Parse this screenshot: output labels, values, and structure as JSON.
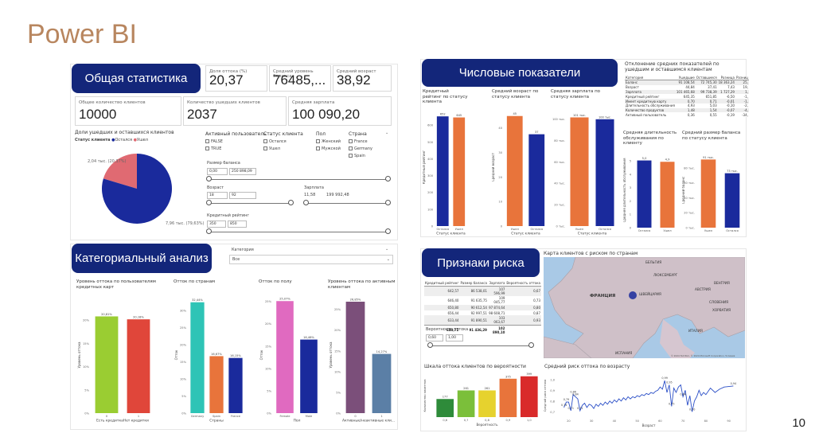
{
  "slide": {
    "title": "Power BI",
    "page": "10"
  },
  "general": {
    "banner": "Общая статистика",
    "cards": [
      {
        "label": "Доля оттока (%)",
        "value": "20,37"
      },
      {
        "label": "Средний уровень баланса",
        "value": "76485,..."
      },
      {
        "label": "Средний возраст",
        "value": "38,92"
      },
      {
        "label": "Общее количество клиентов",
        "value": "10000"
      },
      {
        "label": "Количество ушедших клиентов",
        "value": "2037"
      },
      {
        "label": "Средняя зарплата",
        "value": "100 090,20"
      }
    ],
    "pie": {
      "title": "Доли ушедших и оставшихся клиентов",
      "legend_title": "Статус клиента",
      "legend": [
        "Остался",
        "Ушел"
      ],
      "label_small": "2,04 тыс. (20,37%)",
      "label_big": "7,96 тыс. (79,63%)",
      "share_left": 0.2037,
      "colors": [
        "#1a2a9c",
        "#e06a72"
      ]
    },
    "filters": {
      "active": {
        "title": "Активный пользователь",
        "items": [
          "FALSE",
          "TRUE"
        ]
      },
      "status": {
        "title": "Статус клиента",
        "items": [
          "Остался",
          "Ушел"
        ]
      },
      "gender": {
        "title": "Пол",
        "items": [
          "Женский",
          "Мужской"
        ]
      },
      "country": {
        "title": "Страна",
        "items": [
          "France",
          "Germany",
          "Spain"
        ]
      },
      "balance": {
        "title": "Размер баланса",
        "min": "0,00",
        "max": "250 898,09"
      },
      "age": {
        "title": "Возраст",
        "min": "18",
        "max": "92"
      },
      "salary": {
        "title": "Зарплата",
        "min": "11,58",
        "max": "199 992,48"
      },
      "credit": {
        "title": "Кредитный рейтинг",
        "min": "350",
        "max": "850"
      }
    }
  },
  "numeric": {
    "banner": "Числовые показатели",
    "charts": [
      {
        "title": "Кредитный рейтинг по статусу клиента",
        "ylabel": "Кредитный рейтинг",
        "xlabel": "Статус клиента",
        "categories": [
          "Остался",
          "Ушел"
        ],
        "values": [
          651.85,
          645.35
        ],
        "labels": [
          "652",
          "645"
        ],
        "ymax": 700,
        "ticks": [
          "0",
          "100",
          "200",
          "300",
          "400",
          "500",
          "600"
        ]
      },
      {
        "title": "Средний возраст по статусу клиента",
        "ylabel": "Средний возраст",
        "xlabel": "Статус клиента",
        "categories": [
          "Ушел",
          "Остался"
        ],
        "values": [
          44.84,
          37.41
        ],
        "labels": [
          "45",
          "37"
        ],
        "ymax": 48,
        "ticks": [
          "0",
          "10",
          "20",
          "30",
          "40"
        ]
      },
      {
        "title": "Средняя зарплата по статусу клиента",
        "ylabel": "",
        "xlabel": "Статус клиента",
        "categories": [
          "Ушел",
          "Остался"
        ],
        "values": [
          101465.68,
          99738.39
        ],
        "labels": [
          "101 тыс.",
          "100 тыс."
        ],
        "ymax": 110000,
        "ticks": [
          "0 тыс.",
          "20 тыс.",
          "40 тыс.",
          "60 тыс.",
          "80 тыс.",
          "100 тыс."
        ]
      }
    ],
    "table": {
      "title": "Отклонение средних показателей по ушедшим и оставшимся клиентам",
      "headers": [
        "Категория",
        "Ушедшие",
        "Оставшиеся",
        "Разница",
        "Разниц"
      ],
      "rows": [
        [
          "Баланс",
          "91 108,54",
          "72 745,30",
          "18 363,24",
          "25,"
        ],
        [
          "Возраст",
          "44,84",
          "37,41",
          "7,43",
          "19,"
        ],
        [
          "Зарплата",
          "101 465,68",
          "99 738,39",
          "1 727,29",
          "1,"
        ],
        [
          "Кредитный рейтинг",
          "645,35",
          "651,85",
          "-6,50",
          "-1,"
        ],
        [
          "Имеет кредитную карту",
          "0,70",
          "0,71",
          "-0,01",
          "-1,"
        ],
        [
          "Длительность обслуживания",
          "4,93",
          "5,03",
          "-0,10",
          "-2,"
        ],
        [
          "Количество продуктов",
          "1,48",
          "1,54",
          "-0,07",
          "-4,"
        ],
        [
          "Активный пользователь",
          "0,36",
          "0,55",
          "-0,19",
          "-34,"
        ]
      ]
    },
    "small": [
      {
        "title": "Средняя длительность обслуживания по клиенту",
        "ylabel": "Средняя длительность обслуживания",
        "categories": [
          "Остался",
          "Ушел"
        ],
        "values": [
          5.03,
          4.93
        ],
        "labels": [
          "5,0",
          "4,9"
        ],
        "ymax": 5.6,
        "ticks": [
          "0",
          "1",
          "2",
          "3",
          "4",
          "5"
        ],
        "colors": [
          "#1a2a9c",
          "#e8743b"
        ]
      },
      {
        "title": "Средний размер баланса по статусу клиента",
        "ylabel": "Средний баланс",
        "categories": [
          "Ушел",
          "Остался"
        ],
        "values": [
          91108.54,
          72745.3
        ],
        "labels": [
          "91 тыс.",
          "73 тыс."
        ],
        "ymax": 100000,
        "ticks": [
          "0 тыс.",
          "20 тыс.",
          "40 тыс.",
          "60 тыс.",
          "80 тыс."
        ],
        "colors": [
          "#e8743b",
          "#1a2a9c"
        ]
      }
    ]
  },
  "categorical": {
    "banner": "Категориальный анализ",
    "dropdown": {
      "title": "Категория",
      "value": "Все"
    },
    "charts": [
      {
        "title": "Уровень оттока по пользователям кредитных карт",
        "ylabel": "Уровень оттока",
        "xlabel": "Есть кредиткаНет кредитки",
        "categories": [
          "0",
          "1"
        ],
        "values": [
          20.81,
          20.18
        ],
        "labels": [
          "20,81%",
          "20,18%"
        ],
        "colors": [
          "#9acd32",
          "#e0463a"
        ],
        "ymax": 25,
        "ticks": [
          "0%",
          "5%",
          "10%",
          "15%",
          "20%"
        ]
      },
      {
        "title": "Отток по странам",
        "ylabel": "Отток",
        "xlabel": "Страны",
        "categories": [
          "Germany",
          "Spain",
          "France"
        ],
        "values": [
          32.44,
          16.67,
          16.15
        ],
        "labels": [
          "32,44%",
          "16,67%",
          "16,15%"
        ],
        "colors": [
          "#2ec4b6",
          "#e8743b",
          "#1a2a9c"
        ],
        "ymax": 34,
        "ticks": [
          "0%",
          "5%",
          "10%",
          "15%",
          "20%",
          "25%",
          "30%"
        ]
      },
      {
        "title": "Отток по полу",
        "ylabel": "Отток",
        "xlabel": "Пол",
        "categories": [
          "Female",
          "Male"
        ],
        "values": [
          25.07,
          16.46
        ],
        "labels": [
          "25,07%",
          "16,46%"
        ],
        "colors": [
          "#e06ac0",
          "#1a2a9c"
        ],
        "ymax": 26,
        "ticks": [
          "0%",
          "5%",
          "10%",
          "15%",
          "20%",
          "25%"
        ]
      },
      {
        "title": "Уровень оттока по активным клиентам",
        "ylabel": "Уровень оттока",
        "xlabel": "Активные/неактивные кли...",
        "categories": [
          "0",
          "1"
        ],
        "values": [
          26.85,
          14.27
        ],
        "labels": [
          "26,85%",
          "14,27%"
        ],
        "colors": [
          "#7b4f7a",
          "#5b7fa6"
        ],
        "ymax": 28,
        "ticks": [
          "0%",
          "5%",
          "10%",
          "15%",
          "20%",
          "25%"
        ]
      }
    ]
  },
  "risk": {
    "banner": "Признаки риска",
    "table": {
      "headers": [
        "Кредитный рейтинг",
        "Размер баланса",
        "Зарплата",
        "Вероятность оттока"
      ],
      "rows": [
        [
          "642,57",
          "86 538,01",
          "107 596,99",
          "0,67"
        ],
        [
          "646,40",
          "91 635,75",
          "109 045,77",
          "0,73"
        ],
        [
          "650,80",
          "90 612,54",
          "97 874,64",
          "0,80"
        ],
        [
          "656,44",
          "92 997,51",
          "98 608,71",
          "0,87"
        ],
        [
          "633,44",
          "91 890,51",
          "103 063,67",
          "0,93"
        ]
      ],
      "total": [
        "643,72",
        "91 436,29",
        "102 890,10",
        ""
      ]
    },
    "slider": {
      "title": "Вероятность оттока",
      "min": "0,60",
      "max": "1,00"
    },
    "map": {
      "title": "Карта клиентов с риском по странам",
      "labels": [
        "БЕЛЬГИЯ",
        "ФРАНЦИЯ",
        "ШВЕЙЦАРИЯ",
        "АВСТРИЯ",
        "СЛОВЕНИЯ",
        "ХОРВАТИЯ",
        "ИТАЛИЯ",
        "ИСПАНИЯ",
        "ЛЮКСЕМБУРГ",
        "ВЕНГРИЯ"
      ],
      "copyright": "© 2024 TomTom, © 2024 Microsoft Corporation, Условия"
    },
    "scale": {
      "title": "Шкала оттока клиентов по вероятности",
      "ylabel": "Количество клиентов",
      "xlabel": "Вероятность",
      "categories": [
        "0,6",
        "0,7",
        "0,8",
        "0,9",
        "1,0"
      ],
      "values": [
        177,
        261,
        261,
        375,
        399
      ],
      "colors": [
        "#2e8b3a",
        "#7bbf3a",
        "#e6d22e",
        "#e8743b",
        "#d92a2a"
      ],
      "ymax": 420
    },
    "age": {
      "title": "Средний риск оттока по возрасту",
      "ylabel": "Средний риск оттока",
      "xlabel": "Возраст",
      "xticks": [
        "20",
        "30",
        "40",
        "50",
        "60",
        "70",
        "80",
        "90"
      ],
      "yticks": [
        "0,7",
        "0,8",
        "0,9",
        "1,0"
      ],
      "x": [
        18,
        19,
        20,
        21,
        22,
        23,
        24,
        25,
        26,
        27,
        28,
        29,
        30,
        31,
        32,
        33,
        34,
        35,
        36,
        37,
        38,
        39,
        40,
        41,
        42,
        43,
        44,
        45,
        46,
        47,
        48,
        49,
        50,
        51,
        52,
        53,
        54,
        55,
        56,
        57,
        58,
        59,
        60,
        61,
        62,
        63,
        64,
        65,
        66,
        67,
        68,
        69,
        70,
        71,
        72,
        73,
        74,
        75,
        76,
        77,
        78,
        79,
        80,
        82,
        84,
        86,
        88,
        92
      ],
      "y": [
        0.74,
        0.79,
        0.79,
        0.71,
        0.86,
        0.84,
        0.82,
        0.71,
        0.76,
        0.78,
        0.74,
        0.77,
        0.76,
        0.73,
        0.77,
        0.75,
        0.78,
        0.76,
        0.79,
        0.77,
        0.8,
        0.78,
        0.81,
        0.79,
        0.82,
        0.8,
        0.83,
        0.81,
        0.84,
        0.82,
        0.84,
        0.83,
        0.85,
        0.84,
        0.86,
        0.85,
        0.87,
        0.86,
        0.88,
        0.87,
        0.89,
        0.9,
        0.93,
        0.91,
        0.99,
        0.88,
        0.95,
        0.75,
        0.92,
        0.88,
        0.93,
        0.95,
        0.84,
        0.9,
        0.76,
        0.85,
        0.7,
        0.8,
        0.84,
        0.9,
        0.85,
        0.88,
        0.86,
        0.92,
        0.88,
        0.91,
        0.93,
        0.94
      ],
      "point_labels": [
        {
          "i": 0,
          "t": "0,74"
        },
        {
          "i": 1,
          "t": "0,79"
        },
        {
          "i": 3,
          "t": "0,71"
        },
        {
          "i": 4,
          "t": "0,86"
        },
        {
          "i": 5,
          "t": "0,84"
        },
        {
          "i": 7,
          "t": "0,71"
        },
        {
          "i": 44,
          "t": "0,99"
        },
        {
          "i": 46,
          "t": "0,95"
        },
        {
          "i": 47,
          "t": "0,75"
        },
        {
          "i": 52,
          "t": "0,84"
        },
        {
          "i": 56,
          "t": "0,70"
        },
        {
          "i": 67,
          "t": "0,94"
        }
      ],
      "xmin": 15,
      "xmax": 95,
      "ymin": 0.65,
      "ymax": 1.05
    }
  }
}
